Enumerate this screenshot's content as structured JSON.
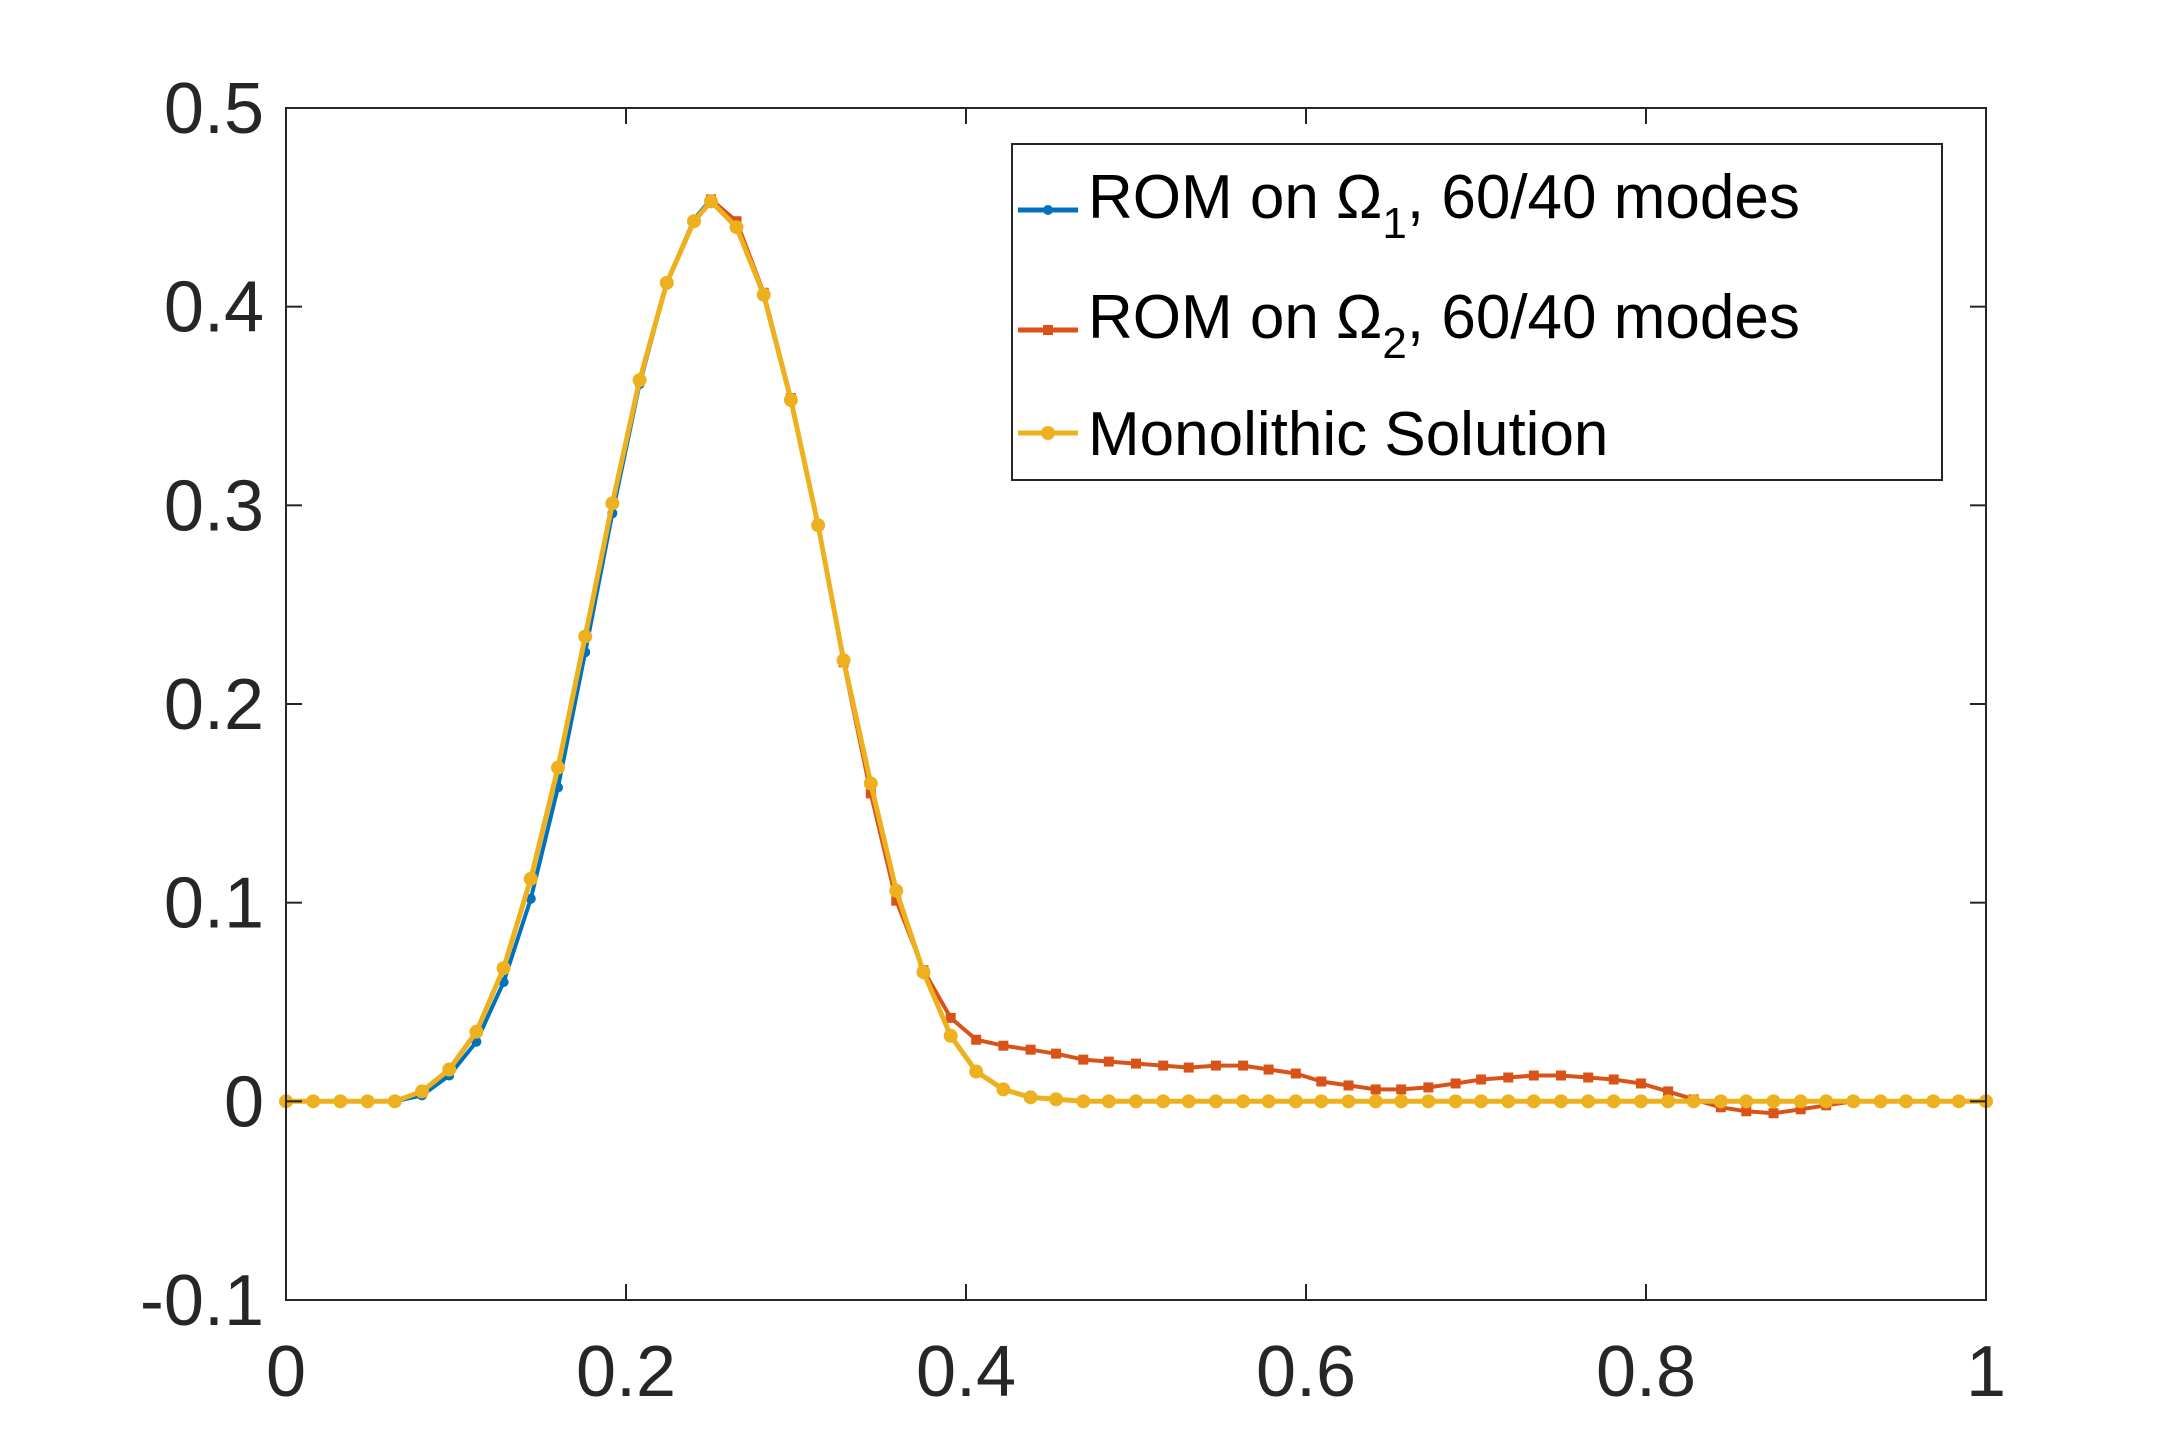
{
  "chart_data": {
    "type": "line",
    "xlim": [
      0,
      1
    ],
    "ylim": [
      -0.1,
      0.5
    ],
    "xticks": [
      "0",
      "0.2",
      "0.4",
      "0.6",
      "0.8",
      "1"
    ],
    "yticks": [
      "-0.1",
      "0",
      "0.1",
      "0.2",
      "0.3",
      "0.4",
      "0.5"
    ],
    "grid": false,
    "legend_position": "top-right",
    "colors": {
      "rom1": "#0072BD",
      "rom2": "#D95319",
      "mono": "#EDB120",
      "axis": "#262626"
    },
    "legend": [
      {
        "pre": "ROM on Ω",
        "sub": "1",
        "post": ", 60/40 modes"
      },
      {
        "pre": "ROM on Ω",
        "sub": "2",
        "post": ", 60/40 modes"
      },
      {
        "pre": "Monolithic Solution",
        "sub": "",
        "post": ""
      }
    ],
    "series": [
      {
        "name": "ROM on Ω1, 60/40 modes",
        "x": [
          0,
          0.016,
          0.032,
          0.048,
          0.064,
          0.08,
          0.096,
          0.112,
          0.128,
          0.144,
          0.16,
          0.176,
          0.192,
          0.208,
          0.224,
          0.24,
          0.25
        ],
        "y": [
          0,
          0,
          0,
          0,
          0,
          0.003,
          0.013,
          0.03,
          0.06,
          0.102,
          0.158,
          0.226,
          0.296,
          0.361,
          0.412,
          0.444,
          0.454
        ]
      },
      {
        "name": "ROM on Ω2, 60/40 modes",
        "x": [
          0.25,
          0.265,
          0.281,
          0.297,
          0.313,
          0.328,
          0.344,
          0.359,
          0.375,
          0.391,
          0.406,
          0.422,
          0.438,
          0.453,
          0.469,
          0.484,
          0.5,
          0.516,
          0.531,
          0.547,
          0.563,
          0.578,
          0.594,
          0.609,
          0.625,
          0.641,
          0.656,
          0.672,
          0.688,
          0.703,
          0.719,
          0.734,
          0.75,
          0.766,
          0.781,
          0.797,
          0.813,
          0.828,
          0.844,
          0.859,
          0.875,
          0.891,
          0.906,
          0.922,
          0.938,
          0.953,
          0.969,
          0.984,
          1.0
        ],
        "y": [
          0.454,
          0.443,
          0.407,
          0.354,
          0.29,
          0.221,
          0.155,
          0.101,
          0.066,
          0.042,
          0.031,
          0.028,
          0.026,
          0.024,
          0.021,
          0.02,
          0.019,
          0.018,
          0.017,
          0.018,
          0.018,
          0.016,
          0.014,
          0.01,
          0.008,
          0.006,
          0.006,
          0.007,
          0.009,
          0.011,
          0.012,
          0.013,
          0.013,
          0.012,
          0.011,
          0.009,
          0.005,
          0.001,
          -0.003,
          -0.005,
          -0.006,
          -0.004,
          -0.002,
          0,
          0,
          0,
          0,
          0,
          0
        ]
      },
      {
        "name": "Monolithic Solution",
        "x": [
          0,
          0.016,
          0.032,
          0.048,
          0.064,
          0.08,
          0.096,
          0.112,
          0.128,
          0.144,
          0.16,
          0.176,
          0.192,
          0.208,
          0.224,
          0.24,
          0.25,
          0.265,
          0.281,
          0.297,
          0.313,
          0.328,
          0.344,
          0.359,
          0.375,
          0.391,
          0.406,
          0.422,
          0.438,
          0.453,
          0.469,
          0.484,
          0.5,
          0.516,
          0.531,
          0.547,
          0.563,
          0.578,
          0.594,
          0.609,
          0.625,
          0.641,
          0.656,
          0.672,
          0.688,
          0.703,
          0.719,
          0.734,
          0.75,
          0.766,
          0.781,
          0.797,
          0.813,
          0.828,
          0.844,
          0.859,
          0.875,
          0.891,
          0.906,
          0.922,
          0.938,
          0.953,
          0.969,
          0.984,
          1.0
        ],
        "y": [
          0,
          0,
          0,
          0,
          0,
          0.005,
          0.016,
          0.035,
          0.067,
          0.112,
          0.168,
          0.234,
          0.301,
          0.363,
          0.412,
          0.443,
          0.453,
          0.44,
          0.406,
          0.353,
          0.29,
          0.222,
          0.16,
          0.106,
          0.065,
          0.033,
          0.015,
          0.006,
          0.002,
          0.001,
          0,
          0,
          0,
          0,
          0,
          0,
          0,
          0,
          0,
          0,
          0,
          0,
          0,
          0,
          0,
          0,
          0,
          0,
          0,
          0,
          0,
          0,
          0,
          0,
          0,
          0,
          0,
          0,
          0,
          0,
          0,
          0,
          0,
          0,
          0
        ]
      }
    ]
  }
}
